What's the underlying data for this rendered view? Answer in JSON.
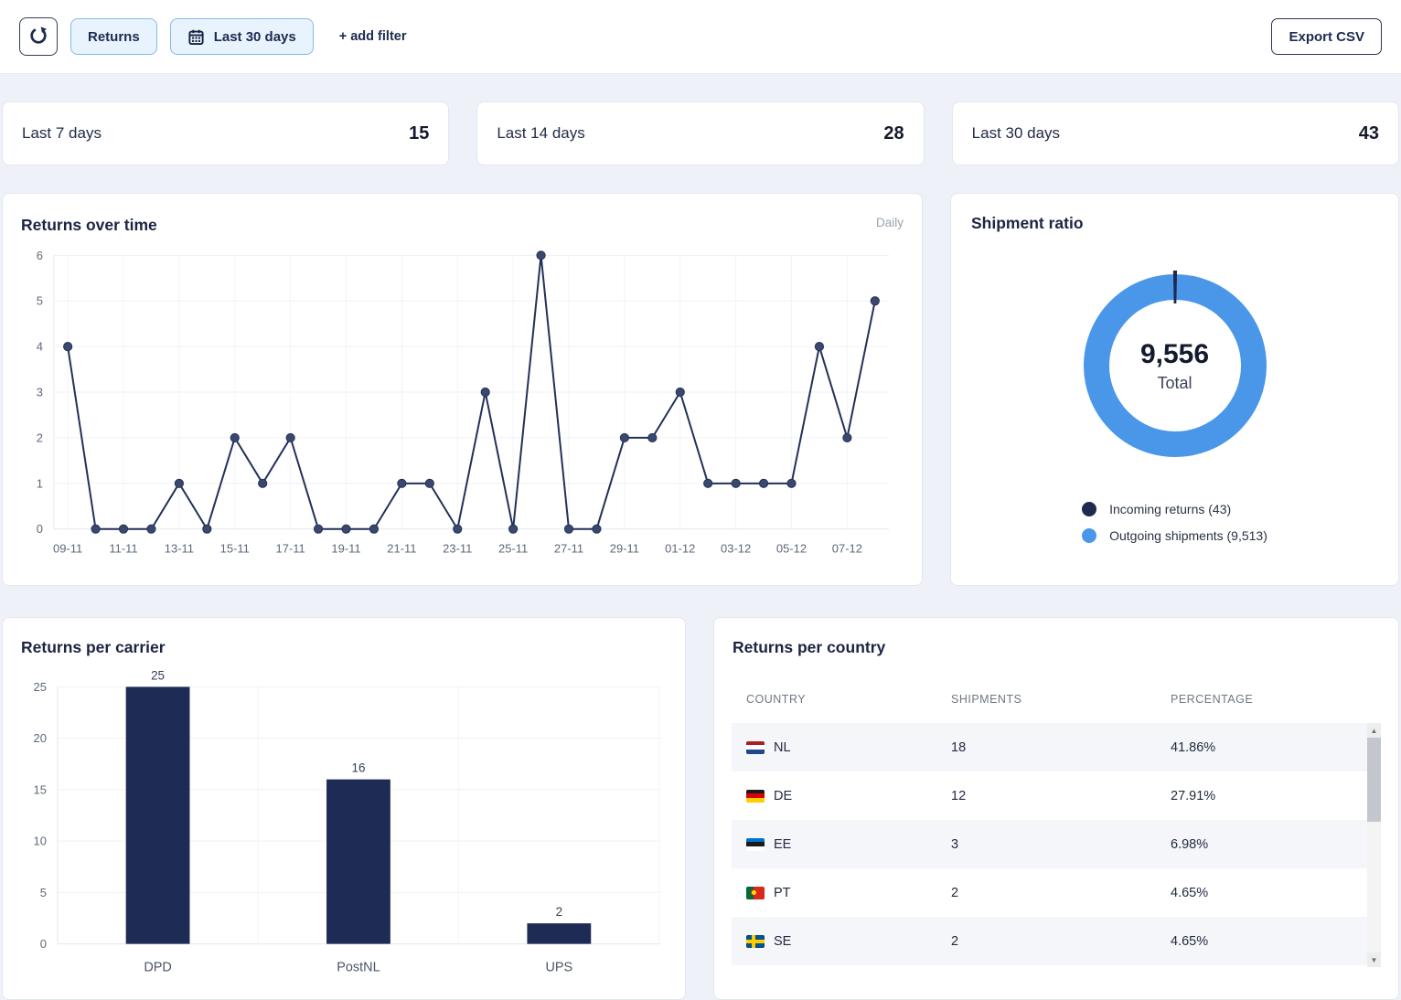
{
  "toolbar": {
    "refresh_icon": "refresh",
    "returns_button": "Returns",
    "calendar_icon": "calendar",
    "date_range_button": "Last 30 days",
    "add_filter": "+ add filter",
    "export_csv": "Export CSV"
  },
  "summary_cards": [
    {
      "label": "Last 7 days",
      "value": "15"
    },
    {
      "label": "Last 14 days",
      "value": "28"
    },
    {
      "label": "Last 30 days",
      "value": "43"
    }
  ],
  "colors": {
    "navy": "#223159",
    "marker": "#3a486e",
    "bar": "#1e2c55",
    "blue": "#4a97e9",
    "grid": "#eff1f5",
    "axis_line": "#e4e8ee",
    "axis_text": "#5d6878"
  },
  "chart_data": [
    {
      "id": "returns_over_time",
      "type": "line",
      "title": "Returns over time",
      "badge": "Daily",
      "x": [
        "09-11",
        "10-11",
        "11-11",
        "12-11",
        "13-11",
        "14-11",
        "15-11",
        "16-11",
        "17-11",
        "18-11",
        "19-11",
        "20-11",
        "21-11",
        "22-11",
        "23-11",
        "24-11",
        "25-11",
        "26-11",
        "27-11",
        "28-11",
        "29-11",
        "30-11",
        "01-12",
        "02-12",
        "03-12",
        "04-12",
        "05-12",
        "06-12",
        "07-12",
        "08-12"
      ],
      "values": [
        4,
        0,
        0,
        0,
        1,
        0,
        2,
        1,
        2,
        0,
        0,
        0,
        1,
        1,
        0,
        3,
        0,
        6,
        0,
        0,
        2,
        2,
        3,
        1,
        1,
        1,
        1,
        4,
        2,
        5
      ],
      "xtick_every": 2,
      "ylim": [
        0,
        6
      ],
      "yticks": [
        0,
        1,
        2,
        3,
        4,
        5,
        6
      ],
      "grid": true,
      "legend": "none"
    },
    {
      "id": "shipment_ratio",
      "type": "pie",
      "title": "Shipment ratio",
      "center_value": "9,556",
      "center_label": "Total",
      "slices": [
        {
          "label": "Incoming returns (43)",
          "value": 43,
          "color": "#1e2a4e"
        },
        {
          "label": "Outgoing shipments (9,513)",
          "value": 9513,
          "color": "#4a97e9"
        }
      ],
      "legend_position": "bottom"
    },
    {
      "id": "returns_per_carrier",
      "type": "bar",
      "title": "Returns per carrier",
      "categories": [
        "DPD",
        "PostNL",
        "UPS"
      ],
      "values": [
        25,
        16,
        2
      ],
      "ylim": [
        0,
        25
      ],
      "yticks": [
        0,
        5,
        10,
        15,
        20,
        25
      ],
      "grid": true,
      "legend": "none"
    },
    {
      "id": "returns_per_country",
      "type": "table",
      "title": "Returns per country",
      "columns": [
        "COUNTRY",
        "SHIPMENTS",
        "PERCENTAGE"
      ],
      "rows": [
        {
          "flag": "nl",
          "country": "NL",
          "shipments": "18",
          "percentage": "41.86%"
        },
        {
          "flag": "de",
          "country": "DE",
          "shipments": "12",
          "percentage": "27.91%"
        },
        {
          "flag": "ee",
          "country": "EE",
          "shipments": "3",
          "percentage": "6.98%"
        },
        {
          "flag": "pt",
          "country": "PT",
          "shipments": "2",
          "percentage": "4.65%"
        },
        {
          "flag": "se",
          "country": "SE",
          "shipments": "2",
          "percentage": "4.65%"
        }
      ]
    }
  ]
}
